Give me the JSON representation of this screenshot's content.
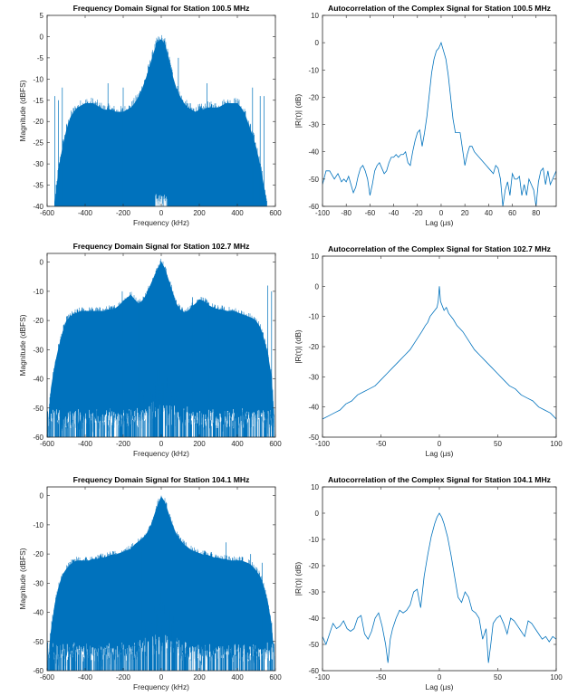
{
  "colors": {
    "series": "#0072BD",
    "axis": "#262626",
    "background": "#ffffff"
  },
  "chart_data": [
    {
      "type": "area",
      "title": "Frequency Domain Signal for Station 100.5 MHz",
      "xlabel": "Frequency (kHz)",
      "ylabel": "Magnitude (dBFS)",
      "xlim": [
        -600,
        600
      ],
      "ylim": [
        -40,
        5
      ],
      "xticks": [
        -600,
        -400,
        -200,
        0,
        200,
        400,
        600
      ],
      "yticks": [
        -40,
        -35,
        -30,
        -25,
        -20,
        -15,
        -10,
        -5,
        0,
        5
      ],
      "grid": false,
      "series": [
        {
          "x": [
            -560,
            -540,
            -520,
            -500,
            -480,
            -460,
            -440,
            -420,
            -400,
            -380,
            -360,
            -340,
            -320,
            -300,
            -280,
            -260,
            -240,
            -220,
            -200,
            -180,
            -160,
            -140,
            -120,
            -100,
            -80,
            -60,
            -40,
            -20,
            0,
            20,
            40,
            60,
            80,
            100,
            120,
            140,
            160,
            180,
            200,
            220,
            240,
            260,
            280,
            300,
            320,
            340,
            360,
            380,
            400,
            420,
            440,
            460,
            480,
            500,
            520,
            540,
            555
          ],
          "y": [
            -40,
            -32,
            -27,
            -23,
            -20,
            -18.5,
            -17.5,
            -17,
            -16.5,
            -16.5,
            -16.5,
            -17,
            -17.5,
            -18,
            -18,
            -18,
            -18.5,
            -18.5,
            -18.5,
            -18,
            -17.5,
            -16.5,
            -15,
            -13,
            -10.5,
            -7.5,
            -4.5,
            -2,
            -1.5,
            -2.5,
            -6,
            -10,
            -13,
            -15,
            -16.5,
            -17.5,
            -18,
            -18.5,
            -18,
            -18,
            -17.5,
            -17.5,
            -17.5,
            -17.5,
            -17,
            -16.5,
            -16.5,
            -16.5,
            -16.5,
            -17.5,
            -19,
            -21.5,
            -24,
            -27,
            -31,
            -36,
            -40
          ]
        }
      ],
      "spikes": [
        [
          -560,
          -14
        ],
        [
          -540,
          -15
        ],
        [
          -520,
          -12
        ],
        [
          -280,
          -11
        ],
        [
          -200,
          -12
        ],
        [
          -15,
          -3
        ],
        [
          90,
          -5
        ],
        [
          240,
          -11
        ],
        [
          480,
          -12
        ],
        [
          520,
          -14
        ],
        [
          540,
          -14
        ]
      ]
    },
    {
      "type": "line",
      "title": "Autocorrelation of the Complex Signal for Station 100.5 MHz",
      "xlabel": "Lag (µs)",
      "ylabel": "|R(τ)| (dB)",
      "xlim": [
        -100,
        97
      ],
      "ylim": [
        -60,
        10
      ],
      "xticks": [
        -100,
        -80,
        -60,
        -40,
        -20,
        0,
        20,
        40,
        60,
        80
      ],
      "yticks": [
        -60,
        -50,
        -40,
        -30,
        -20,
        -10,
        0,
        10
      ],
      "grid": false,
      "series": [
        {
          "x": [
            -100,
            -97,
            -94,
            -90,
            -87,
            -84,
            -82,
            -80,
            -78,
            -76,
            -74,
            -72,
            -70,
            -68,
            -66,
            -64,
            -62,
            -60,
            -58,
            -56,
            -54,
            -52,
            -50,
            -48,
            -46,
            -44,
            -42,
            -40,
            -38,
            -36,
            -34,
            -32,
            -30,
            -28,
            -26,
            -24,
            -22,
            -20,
            -18,
            -16,
            -14,
            -12,
            -10,
            -8,
            -6,
            -4,
            -2,
            0,
            2,
            4,
            6,
            8,
            10,
            12,
            14,
            16,
            18,
            20,
            22,
            24,
            26,
            28,
            30,
            32,
            34,
            36,
            38,
            40,
            42,
            44,
            46,
            48,
            50,
            52,
            54,
            56,
            58,
            60,
            62,
            64,
            66,
            68,
            70,
            72,
            74,
            76,
            78,
            80,
            82,
            84,
            86,
            88,
            90,
            92,
            94,
            97
          ],
          "y": [
            -52,
            -47,
            -47,
            -50,
            -48,
            -51,
            -50,
            -51,
            -49,
            -52,
            -55,
            -53,
            -49,
            -46,
            -45,
            -47,
            -50,
            -56,
            -52,
            -47,
            -45,
            -44,
            -46,
            -48,
            -47,
            -44,
            -42,
            -42,
            -41,
            -42,
            -41,
            -41,
            -40,
            -44,
            -45,
            -40,
            -36,
            -33,
            -32,
            -38,
            -33,
            -27,
            -19,
            -11,
            -6,
            -3,
            -2,
            0,
            -3,
            -6,
            -12,
            -20,
            -28,
            -33,
            -33,
            -33,
            -39,
            -45,
            -41,
            -38,
            -38,
            -40,
            -41,
            -42,
            -43,
            -44,
            -45,
            -46,
            -47,
            -48,
            -45,
            -46,
            -50,
            -60,
            -54,
            -51,
            -56,
            -48,
            -50,
            -50,
            -49,
            -56,
            -52,
            -56,
            -50,
            -52,
            -54,
            -60,
            -51,
            -47,
            -46,
            -52,
            -47,
            -52,
            -50,
            -47
          ]
        }
      ]
    },
    {
      "type": "area",
      "title": "Frequency Domain Signal for Station 102.7 MHz",
      "xlabel": "Frequency (kHz)",
      "ylabel": "Magnitude (dBFS)",
      "xlim": [
        -600,
        600
      ],
      "ylim": [
        -60,
        3
      ],
      "xticks": [
        -600,
        -400,
        -200,
        0,
        200,
        400,
        600
      ],
      "yticks": [
        -60,
        -50,
        -40,
        -30,
        -20,
        -10,
        0
      ],
      "grid": false,
      "series": [
        {
          "x": [
            -600,
            -580,
            -560,
            -540,
            -520,
            -500,
            -480,
            -460,
            -440,
            -420,
            -400,
            -380,
            -360,
            -340,
            -320,
            -300,
            -280,
            -260,
            -240,
            -220,
            -200,
            -180,
            -160,
            -140,
            -120,
            -100,
            -80,
            -60,
            -40,
            -20,
            0,
            20,
            40,
            60,
            80,
            100,
            120,
            140,
            160,
            180,
            200,
            220,
            240,
            260,
            280,
            300,
            320,
            340,
            360,
            380,
            400,
            420,
            440,
            460,
            480,
            500,
            520,
            540,
            560,
            580,
            600
          ],
          "y": [
            -60,
            -44,
            -36,
            -30,
            -25,
            -21,
            -19.5,
            -18.5,
            -18,
            -17.5,
            -17.5,
            -17.5,
            -17.5,
            -17.5,
            -17.5,
            -17.5,
            -17,
            -17,
            -16.5,
            -15.5,
            -14,
            -13,
            -12,
            -13.5,
            -15,
            -14,
            -12,
            -9,
            -6,
            -3,
            -0.5,
            -3,
            -7,
            -11,
            -15,
            -17,
            -18,
            -17.5,
            -16,
            -15,
            -13.5,
            -14,
            -15,
            -16,
            -16.5,
            -17,
            -17,
            -17.5,
            -17.5,
            -17.5,
            -18,
            -18.5,
            -19,
            -19.5,
            -20,
            -21,
            -23,
            -27,
            -32,
            -40,
            -60
          ]
        }
      ],
      "spikes": [
        [
          -205,
          -10
        ],
        [
          -120,
          -13
        ],
        [
          165,
          -12
        ],
        [
          250,
          -15
        ],
        [
          560,
          -8
        ],
        [
          580,
          -10
        ]
      ]
    },
    {
      "type": "line",
      "title": "Autocorrelation of the Complex Signal for Station 102.7 MHz",
      "xlabel": "Lag (µs)",
      "ylabel": "|R(τ)| (dB)",
      "xlim": [
        -100,
        100
      ],
      "ylim": [
        -50,
        10
      ],
      "xticks": [
        -100,
        -50,
        0,
        50,
        100
      ],
      "yticks": [
        -50,
        -40,
        -30,
        -20,
        -10,
        0,
        10
      ],
      "grid": false,
      "series": [
        {
          "x": [
            -100,
            -95,
            -90,
            -85,
            -80,
            -75,
            -70,
            -65,
            -60,
            -55,
            -50,
            -45,
            -40,
            -35,
            -30,
            -25,
            -20,
            -15,
            -12,
            -10,
            -8,
            -6,
            -4,
            -2,
            -1,
            0,
            1,
            2,
            4,
            6,
            8,
            10,
            12,
            15,
            20,
            25,
            30,
            35,
            40,
            45,
            50,
            55,
            60,
            65,
            70,
            75,
            80,
            85,
            90,
            95,
            100
          ],
          "y": [
            -44,
            -43,
            -42,
            -41,
            -39,
            -38,
            -36,
            -35,
            -34,
            -33,
            -31,
            -29,
            -27,
            -25,
            -23,
            -21,
            -18,
            -15,
            -13,
            -12,
            -10,
            -9,
            -8,
            -7,
            -5,
            0,
            -5,
            -6,
            -8,
            -7,
            -9,
            -10,
            -11,
            -13,
            -15,
            -18,
            -21,
            -23,
            -25,
            -27,
            -29,
            -31,
            -33,
            -34,
            -36,
            -37,
            -38,
            -40,
            -41,
            -42,
            -44
          ]
        }
      ]
    },
    {
      "type": "area",
      "title": "Frequency Domain Signal for Station 104.1 MHz",
      "xlabel": "Frequency (kHz)",
      "ylabel": "Magnitude (dBFS)",
      "xlim": [
        -600,
        600
      ],
      "ylim": [
        -60,
        3
      ],
      "xticks": [
        -600,
        -400,
        -200,
        0,
        200,
        400,
        600
      ],
      "yticks": [
        -60,
        -50,
        -40,
        -30,
        -20,
        -10,
        0
      ],
      "grid": false,
      "series": [
        {
          "x": [
            -600,
            -580,
            -560,
            -540,
            -520,
            -500,
            -480,
            -460,
            -440,
            -420,
            -400,
            -380,
            -360,
            -340,
            -320,
            -300,
            -280,
            -260,
            -240,
            -220,
            -200,
            -180,
            -160,
            -140,
            -120,
            -100,
            -80,
            -60,
            -40,
            -20,
            0,
            20,
            40,
            60,
            80,
            100,
            120,
            140,
            160,
            180,
            200,
            220,
            240,
            260,
            280,
            300,
            320,
            340,
            360,
            380,
            400,
            420,
            440,
            460,
            480,
            500,
            520,
            540,
            560,
            580,
            600
          ],
          "y": [
            -60,
            -47,
            -38,
            -32,
            -28,
            -26,
            -24.5,
            -23.5,
            -23,
            -23,
            -23,
            -23,
            -22.5,
            -22.5,
            -22,
            -22,
            -21.5,
            -21,
            -21,
            -20.5,
            -20,
            -19.5,
            -19,
            -17.5,
            -16.5,
            -15.5,
            -14,
            -12,
            -8,
            -4,
            -1,
            -3,
            -7,
            -11,
            -14,
            -16,
            -17.5,
            -18.5,
            -19.5,
            -20,
            -20.5,
            -21,
            -21,
            -21.5,
            -22,
            -22,
            -22.5,
            -22.5,
            -23,
            -23,
            -23,
            -23,
            -23.5,
            -24,
            -25,
            -26.5,
            -28.5,
            -32,
            -37,
            -45,
            -60
          ]
        }
      ],
      "spikes": [
        [
          -100,
          -17
        ],
        [
          -180,
          -19
        ],
        [
          340,
          -16
        ],
        [
          470,
          -20
        ],
        [
          530,
          -23
        ]
      ]
    },
    {
      "type": "line",
      "title": "Autocorrelation of the Complex Signal for Station 104.1 MHz",
      "xlabel": "Lag (µs)",
      "ylabel": "|R(τ)| (dB)",
      "xlim": [
        -100,
        100
      ],
      "ylim": [
        -60,
        10
      ],
      "xticks": [
        -100,
        -50,
        0,
        50,
        100
      ],
      "yticks": [
        -60,
        -50,
        -40,
        -30,
        -20,
        -10,
        0,
        10
      ],
      "grid": false,
      "series": [
        {
          "x": [
            -100,
            -97,
            -94,
            -91,
            -88,
            -85,
            -82,
            -79,
            -76,
            -73,
            -70,
            -67,
            -64,
            -61,
            -58,
            -55,
            -52,
            -49,
            -46,
            -44,
            -42,
            -40,
            -37,
            -34,
            -31,
            -28,
            -25,
            -22,
            -19,
            -16,
            -13,
            -10,
            -7,
            -4,
            -2,
            0,
            2,
            4,
            7,
            10,
            13,
            16,
            19,
            22,
            25,
            28,
            31,
            34,
            37,
            40,
            42,
            44,
            46,
            49,
            52,
            55,
            58,
            61,
            64,
            67,
            70,
            73,
            76,
            79,
            82,
            85,
            88,
            91,
            94,
            97,
            100
          ],
          "y": [
            -47,
            -50,
            -46,
            -42,
            -44,
            -43,
            -41,
            -44,
            -45,
            -44,
            -40,
            -39,
            -46,
            -48,
            -45,
            -40,
            -38,
            -43,
            -50,
            -57,
            -48,
            -44,
            -40,
            -37,
            -38,
            -37,
            -35,
            -30,
            -29,
            -36,
            -24,
            -16,
            -9,
            -4,
            -1.5,
            0,
            -1.5,
            -4,
            -9,
            -16,
            -24,
            -32,
            -34,
            -30,
            -32,
            -37,
            -38,
            -40,
            -48,
            -44,
            -57,
            -50,
            -42,
            -40,
            -39,
            -42,
            -46,
            -40,
            -41,
            -43,
            -45,
            -47,
            -41,
            -42,
            -44,
            -46,
            -48,
            -47,
            -49,
            -47,
            -48
          ]
        }
      ]
    }
  ]
}
